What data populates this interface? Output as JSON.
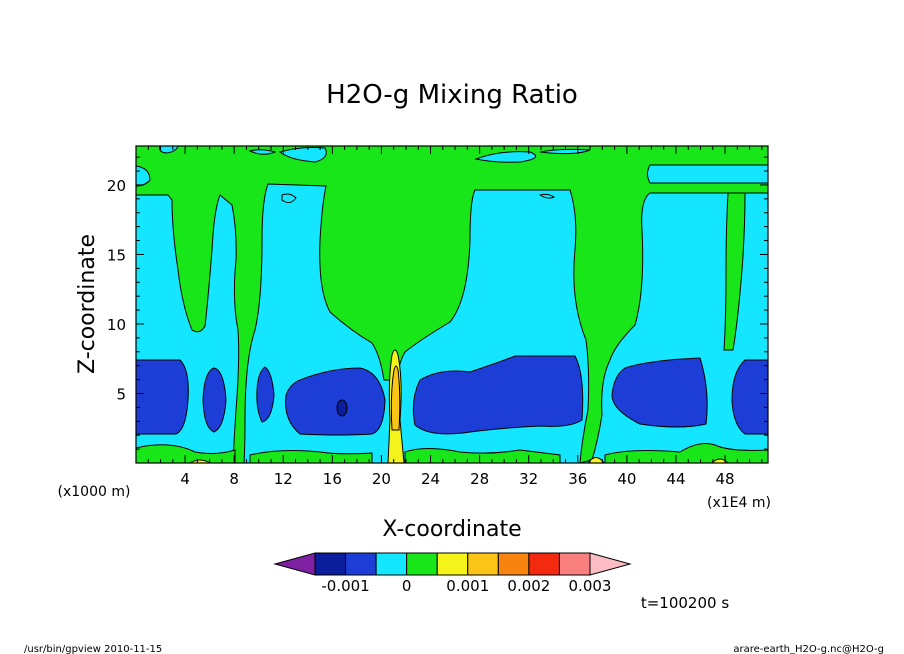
{
  "chart_data": {
    "type": "heatmap",
    "title": "H2O-g Mixing Ratio",
    "xlabel": "X-coordinate",
    "ylabel": "Z-coordinate",
    "x_unit": "(x1E4 m)",
    "y_unit": "(x1000 m)",
    "xlim": [
      0,
      51.5
    ],
    "ylim": [
      0,
      22.8
    ],
    "x_ticks": [
      "4",
      "8",
      "12",
      "16",
      "20",
      "24",
      "28",
      "32",
      "36",
      "40",
      "44",
      "48"
    ],
    "x_tick_values": [
      4,
      8,
      12,
      16,
      20,
      24,
      28,
      32,
      36,
      40,
      44,
      48
    ],
    "y_ticks": [
      "5",
      "10",
      "15",
      "20"
    ],
    "y_tick_values": [
      5,
      10,
      15,
      20
    ],
    "colorbar": {
      "colors": [
        "#7f1fa2",
        "#0a1d9a",
        "#1c3ed6",
        "#14e6ff",
        "#19e619",
        "#f4f41a",
        "#fac516",
        "#f9830f",
        "#f32a10",
        "#fa7f7f",
        "#fbbcc4"
      ],
      "tick_labels": [
        "-0.001",
        "0",
        "0.001",
        "0.002",
        "0.003"
      ],
      "tick_values": [
        -0.001,
        0,
        0.001,
        0.002,
        0.003
      ]
    },
    "regions": [
      {
        "level": "cyan",
        "color": "#14e6ff",
        "x": [
          0,
          51.5
        ],
        "z": [
          0,
          22.8
        ]
      },
      {
        "level": "green",
        "color": "#19e619",
        "x": [
          0,
          51.5
        ],
        "z": [
          19.5,
          22.8
        ]
      },
      {
        "level": "green",
        "color": "#19e619",
        "x": [
          2.5,
          6.5
        ],
        "z": [
          10,
          19.5
        ]
      },
      {
        "level": "green",
        "color": "#19e619",
        "x": [
          6.5,
          9.5
        ],
        "z": [
          0.5,
          19.5
        ]
      },
      {
        "level": "green",
        "color": "#19e619",
        "x": [
          15,
          27
        ],
        "z": [
          9,
          19.5
        ]
      },
      {
        "level": "green",
        "color": "#19e619",
        "x": [
          20,
          22
        ],
        "z": [
          0,
          9
        ]
      },
      {
        "level": "green",
        "color": "#19e619",
        "x": [
          35,
          42
        ],
        "z": [
          0,
          19.5
        ]
      },
      {
        "level": "green",
        "color": "#19e619",
        "x": [
          46.5,
          48.5
        ],
        "z": [
          8,
          19.5
        ]
      },
      {
        "level": "blue",
        "color": "#1c3ed6",
        "x": [
          0,
          4
        ],
        "z": [
          2.2,
          7.5
        ]
      },
      {
        "level": "blue",
        "color": "#1c3ed6",
        "x": [
          5.5,
          7.5
        ],
        "z": [
          2.2,
          6.9
        ]
      },
      {
        "level": "blue",
        "color": "#1c3ed6",
        "x": [
          10,
          12
        ],
        "z": [
          3.2,
          7.0
        ]
      },
      {
        "level": "blue",
        "color": "#1c3ed6",
        "x": [
          12,
          20
        ],
        "z": [
          2.2,
          7.0
        ]
      },
      {
        "level": "blue",
        "color": "#1c3ed6",
        "x": [
          22.5,
          36.5
        ],
        "z": [
          2.0,
          7.8
        ]
      },
      {
        "level": "blue",
        "color": "#1c3ed6",
        "x": [
          39,
          46
        ],
        "z": [
          2.8,
          7.5
        ]
      },
      {
        "level": "blue",
        "color": "#1c3ed6",
        "x": [
          48.5,
          51.5
        ],
        "z": [
          2.2,
          7.5
        ]
      },
      {
        "level": "dark-blue",
        "color": "#0a1d9a",
        "x": [
          16.3,
          16.9
        ],
        "z": [
          3.5,
          4.7
        ]
      },
      {
        "level": "yellow",
        "color": "#f4f41a",
        "x": [
          20.3,
          21.8
        ],
        "z": [
          0,
          8.3
        ]
      },
      {
        "level": "orange",
        "color": "#fac516",
        "x": [
          20.6,
          21.5
        ],
        "z": [
          2.0,
          7.5
        ]
      }
    ]
  },
  "annotations": {
    "time": "t=100200 s",
    "footer_left": "/usr/bin/gpview  2010-11-15",
    "footer_right": "arare-earth_H2O-g.nc@H2O-g"
  }
}
